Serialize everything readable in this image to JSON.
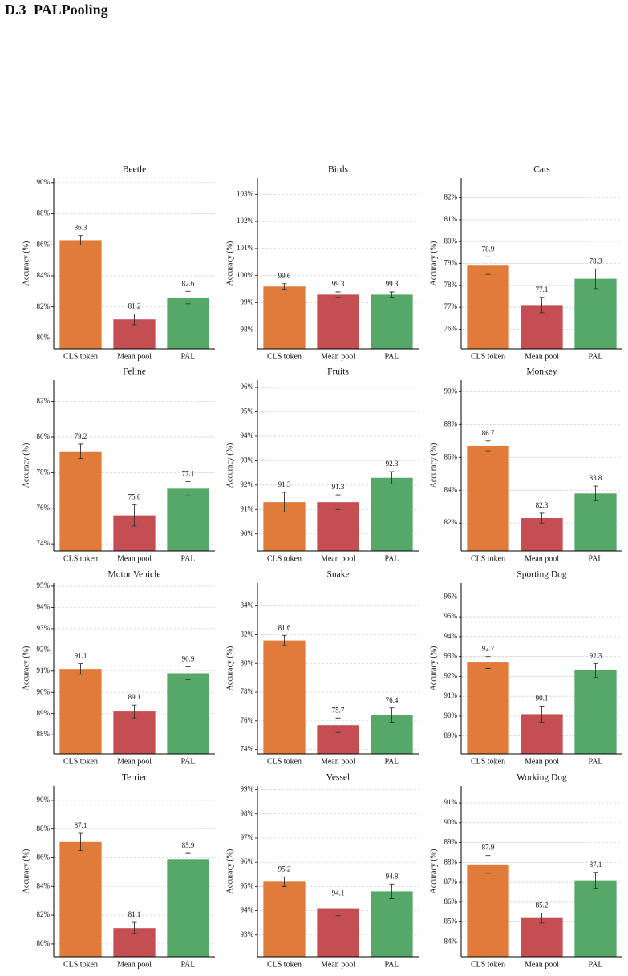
{
  "heading": {
    "number": "D.3",
    "title": "PALPooling"
  },
  "chart_data": [
    {
      "type": "bar",
      "title": "Beetle",
      "ylabel": "Accuracy (%)",
      "categories": [
        "CLS token",
        "Mean pool",
        "PAL"
      ],
      "values": [
        86.3,
        81.2,
        82.6
      ],
      "errors": [
        0.3,
        0.35,
        0.4
      ],
      "colors": [
        "#e07b39",
        "#c44e52",
        "#55a868"
      ],
      "ylim": [
        79.3,
        90.3
      ],
      "yticks": [
        {
          "value": 80,
          "label": "80%"
        },
        {
          "value": 82,
          "label": "82%"
        },
        {
          "value": 84,
          "label": "84%"
        },
        {
          "value": 86,
          "label": "86%"
        },
        {
          "value": 88,
          "label": "88%"
        },
        {
          "value": 90,
          "label": "90%"
        }
      ],
      "grid": true
    },
    {
      "type": "bar",
      "title": "Birds",
      "ylabel": "Accuracy (%)",
      "categories": [
        "CLS token",
        "Mean pool",
        "PAL"
      ],
      "values": [
        99.6,
        99.3,
        99.3
      ],
      "errors": [
        0.1,
        0.1,
        0.1
      ],
      "colors": [
        "#e07b39",
        "#c44e52",
        "#55a868"
      ],
      "ylim": [
        97.3,
        103.6
      ],
      "yticks": [
        {
          "value": 98,
          "label": "98%"
        },
        {
          "value": 99,
          "label": "99%"
        },
        {
          "value": 100,
          "label": "100%"
        },
        {
          "value": 101,
          "label": "101%"
        },
        {
          "value": 102,
          "label": "102%"
        },
        {
          "value": 103,
          "label": "103%"
        }
      ],
      "grid": true
    },
    {
      "type": "bar",
      "title": "Cats",
      "ylabel": "Accuracy (%)",
      "categories": [
        "CLS token",
        "Mean pool",
        "PAL"
      ],
      "values": [
        78.9,
        77.1,
        78.3
      ],
      "errors": [
        0.4,
        0.35,
        0.45
      ],
      "colors": [
        "#e07b39",
        "#c44e52",
        "#55a868"
      ],
      "ylim": [
        75.1,
        82.9
      ],
      "yticks": [
        {
          "value": 76,
          "label": "76%"
        },
        {
          "value": 77,
          "label": "77%"
        },
        {
          "value": 78,
          "label": "78%"
        },
        {
          "value": 79,
          "label": "79%"
        },
        {
          "value": 80,
          "label": "80%"
        },
        {
          "value": 81,
          "label": "81%"
        },
        {
          "value": 82,
          "label": "82%"
        }
      ],
      "grid": true
    },
    {
      "type": "bar",
      "title": "Feline",
      "ylabel": "Accuracy (%)",
      "categories": [
        "CLS token",
        "Mean pool",
        "PAL"
      ],
      "values": [
        79.2,
        75.6,
        77.1
      ],
      "errors": [
        0.4,
        0.6,
        0.4
      ],
      "colors": [
        "#e07b39",
        "#c44e52",
        "#55a868"
      ],
      "ylim": [
        73.6,
        83.2
      ],
      "yticks": [
        {
          "value": 74,
          "label": "74%"
        },
        {
          "value": 76,
          "label": "76%"
        },
        {
          "value": 78,
          "label": "78%"
        },
        {
          "value": 80,
          "label": "80%"
        },
        {
          "value": 82,
          "label": "82%"
        }
      ],
      "grid": true
    },
    {
      "type": "bar",
      "title": "Fruits",
      "ylabel": "Accuracy (%)",
      "categories": [
        "CLS token",
        "Mean pool",
        "PAL"
      ],
      "values": [
        91.3,
        91.3,
        92.3
      ],
      "errors": [
        0.4,
        0.3,
        0.25
      ],
      "colors": [
        "#e07b39",
        "#c44e52",
        "#55a868"
      ],
      "ylim": [
        89.3,
        96.3
      ],
      "yticks": [
        {
          "value": 90,
          "label": "90%"
        },
        {
          "value": 91,
          "label": "91%"
        },
        {
          "value": 92,
          "label": "92%"
        },
        {
          "value": 93,
          "label": "93%"
        },
        {
          "value": 94,
          "label": "94%"
        },
        {
          "value": 95,
          "label": "95%"
        },
        {
          "value": 96,
          "label": "96%"
        }
      ],
      "grid": true
    },
    {
      "type": "bar",
      "title": "Monkey",
      "ylabel": "Accuracy (%)",
      "categories": [
        "CLS token",
        "Mean pool",
        "PAL"
      ],
      "values": [
        86.7,
        82.3,
        83.8
      ],
      "errors": [
        0.3,
        0.3,
        0.45
      ],
      "colors": [
        "#e07b39",
        "#c44e52",
        "#55a868"
      ],
      "ylim": [
        80.3,
        90.7
      ],
      "yticks": [
        {
          "value": 82,
          "label": "82%"
        },
        {
          "value": 84,
          "label": "84%"
        },
        {
          "value": 86,
          "label": "86%"
        },
        {
          "value": 88,
          "label": "88%"
        },
        {
          "value": 90,
          "label": "90%"
        }
      ],
      "grid": true
    },
    {
      "type": "bar",
      "title": "Motor Vehicle",
      "ylabel": "Accuracy (%)",
      "categories": [
        "CLS token",
        "Mean pool",
        "PAL"
      ],
      "values": [
        91.1,
        89.1,
        90.9
      ],
      "errors": [
        0.25,
        0.3,
        0.3
      ],
      "colors": [
        "#e07b39",
        "#c44e52",
        "#55a868"
      ],
      "ylim": [
        87.1,
        95.15
      ],
      "yticks": [
        {
          "value": 88,
          "label": "88%"
        },
        {
          "value": 89,
          "label": "89%"
        },
        {
          "value": 90,
          "label": "90%"
        },
        {
          "value": 91,
          "label": "91%"
        },
        {
          "value": 92,
          "label": "92%"
        },
        {
          "value": 93,
          "label": "93%"
        },
        {
          "value": 94,
          "label": "94%"
        },
        {
          "value": 95,
          "label": "95%"
        }
      ],
      "grid": true
    },
    {
      "type": "bar",
      "title": "Snake",
      "ylabel": "Accuracy (%)",
      "categories": [
        "CLS token",
        "Mean pool",
        "PAL"
      ],
      "values": [
        81.6,
        75.7,
        76.4
      ],
      "errors": [
        0.35,
        0.5,
        0.5
      ],
      "colors": [
        "#e07b39",
        "#c44e52",
        "#55a868"
      ],
      "ylim": [
        73.7,
        85.6
      ],
      "yticks": [
        {
          "value": 74,
          "label": "74%"
        },
        {
          "value": 76,
          "label": "76%"
        },
        {
          "value": 78,
          "label": "78%"
        },
        {
          "value": 80,
          "label": "80%"
        },
        {
          "value": 82,
          "label": "82%"
        },
        {
          "value": 84,
          "label": "84%"
        }
      ],
      "grid": true
    },
    {
      "type": "bar",
      "title": "Sporting Dog",
      "ylabel": "Accuracy (%)",
      "categories": [
        "CLS token",
        "Mean pool",
        "PAL"
      ],
      "values": [
        92.7,
        90.1,
        92.3
      ],
      "errors": [
        0.3,
        0.4,
        0.35
      ],
      "colors": [
        "#e07b39",
        "#c44e52",
        "#55a868"
      ],
      "ylim": [
        88.1,
        96.7
      ],
      "yticks": [
        {
          "value": 89,
          "label": "89%"
        },
        {
          "value": 90,
          "label": "90%"
        },
        {
          "value": 91,
          "label": "91%"
        },
        {
          "value": 92,
          "label": "92%"
        },
        {
          "value": 93,
          "label": "93%"
        },
        {
          "value": 94,
          "label": "94%"
        },
        {
          "value": 95,
          "label": "95%"
        },
        {
          "value": 96,
          "label": "96%"
        }
      ],
      "grid": true
    },
    {
      "type": "bar",
      "title": "Terrier",
      "ylabel": "Accuracy (%)",
      "categories": [
        "CLS token",
        "Mean pool",
        "PAL"
      ],
      "values": [
        87.1,
        81.1,
        85.9
      ],
      "errors": [
        0.6,
        0.4,
        0.4
      ],
      "colors": [
        "#e07b39",
        "#c44e52",
        "#55a868"
      ],
      "ylim": [
        79.1,
        91.0
      ],
      "yticks": [
        {
          "value": 80,
          "label": "80%"
        },
        {
          "value": 82,
          "label": "82%"
        },
        {
          "value": 84,
          "label": "84%"
        },
        {
          "value": 86,
          "label": "86%"
        },
        {
          "value": 88,
          "label": "88%"
        },
        {
          "value": 90,
          "label": "90%"
        }
      ],
      "grid": true
    },
    {
      "type": "bar",
      "title": "Vessel",
      "ylabel": "Accuracy (%)",
      "categories": [
        "CLS token",
        "Mean pool",
        "PAL"
      ],
      "values": [
        95.2,
        94.1,
        94.8
      ],
      "errors": [
        0.2,
        0.3,
        0.3
      ],
      "colors": [
        "#e07b39",
        "#c44e52",
        "#55a868"
      ],
      "ylim": [
        92.1,
        99.15
      ],
      "yticks": [
        {
          "value": 93,
          "label": "93%"
        },
        {
          "value": 94,
          "label": "94%"
        },
        {
          "value": 95,
          "label": "95%"
        },
        {
          "value": 96,
          "label": "96%"
        },
        {
          "value": 97,
          "label": "97%"
        },
        {
          "value": 98,
          "label": "98%"
        },
        {
          "value": 99,
          "label": "99%"
        }
      ],
      "grid": true
    },
    {
      "type": "bar",
      "title": "Working Dog",
      "ylabel": "Accuracy (%)",
      "categories": [
        "CLS token",
        "Mean pool",
        "PAL"
      ],
      "values": [
        87.9,
        85.2,
        87.1
      ],
      "errors": [
        0.45,
        0.25,
        0.4
      ],
      "colors": [
        "#e07b39",
        "#c44e52",
        "#55a868"
      ],
      "ylim": [
        83.25,
        91.85
      ],
      "yticks": [
        {
          "value": 84,
          "label": "84%"
        },
        {
          "value": 85,
          "label": "85%"
        },
        {
          "value": 86,
          "label": "86%"
        },
        {
          "value": 87,
          "label": "87%"
        },
        {
          "value": 88,
          "label": "88%"
        },
        {
          "value": 89,
          "label": "89%"
        },
        {
          "value": 90,
          "label": "90%"
        },
        {
          "value": 91,
          "label": "91%"
        }
      ],
      "grid": true
    }
  ]
}
